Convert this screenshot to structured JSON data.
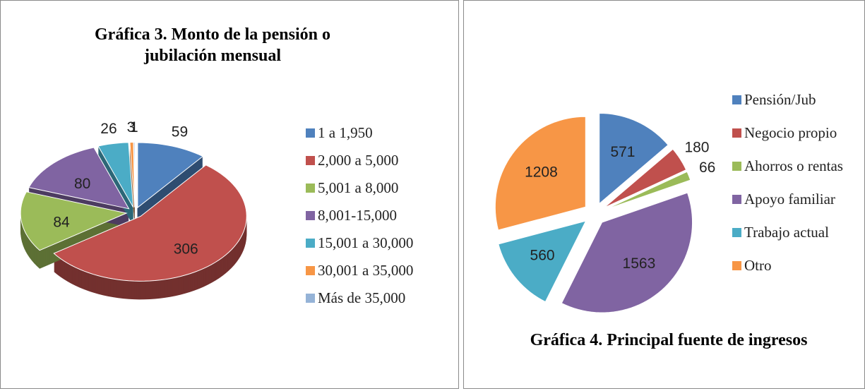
{
  "chart_data": [
    {
      "type": "pie3d",
      "title": "Gráfica 3. Monto de la pensión o jubilación mensual",
      "categories": [
        "1 a 1,950",
        "2,000 a 5,000",
        "5,001 a 8,000",
        "8,001-15,000",
        "15,001 a 30,000",
        "30,001 a 35,000",
        "Más de 35,000"
      ],
      "values": [
        59,
        306,
        84,
        80,
        26,
        3,
        1
      ],
      "colors": [
        "#4f81bd",
        "#c0504d",
        "#9bbb59",
        "#8064a2",
        "#4bacc6",
        "#f79646",
        "#95b3d7"
      ],
      "legend": "right"
    },
    {
      "type": "pie",
      "title": "Gráfica 4. Principal fuente de ingresos",
      "categories": [
        "Pensión/Jub",
        "Negocio propio",
        "Ahorros o rentas",
        "Apoyo familiar",
        "Trabajo actual",
        "Otro"
      ],
      "values": [
        571,
        180,
        66,
        1563,
        560,
        1208
      ],
      "colors": [
        "#4f81bd",
        "#c0504d",
        "#9bbb59",
        "#8064a2",
        "#4bacc6",
        "#f79646"
      ],
      "legend": "right"
    }
  ]
}
